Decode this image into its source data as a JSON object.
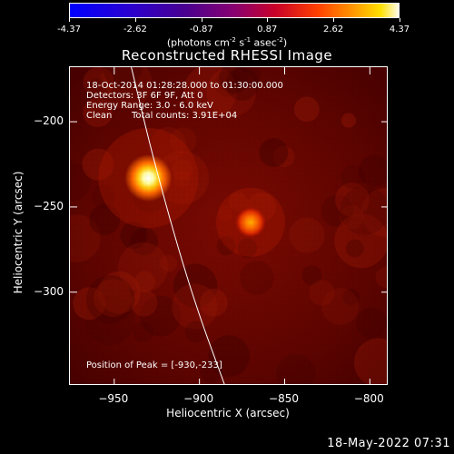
{
  "chart_data": {
    "type": "heatmap",
    "title": "Reconstructed RHESSI Image",
    "colorbar": {
      "tick_labels": [
        "-4.37",
        "-2.62",
        "-0.87",
        "0.87",
        "2.62",
        "4.37"
      ],
      "range": [
        -4.37,
        4.37
      ],
      "unit_parts": [
        "(photons cm",
        "-2",
        " s",
        "-1",
        " asec",
        "-2",
        ")"
      ]
    },
    "annotations": {
      "time_range": "18-Oct-2014 01:28:28.000 to 01:30:00.000",
      "detectors": "Detectors: 3F 6F 9F, Att 0",
      "energy_range": "Energy Range: 3.0 - 6.0 keV",
      "clean_label": "Clean",
      "total_counts": "Total counts: 3.91E+04",
      "peak_position": "Position of Peak = [-930,-233]"
    },
    "xlabel": "Heliocentric X (arcsec)",
    "ylabel": "Heliocentric Y (arcsec)",
    "xlim": [
      -976,
      -789
    ],
    "ylim": [
      -355,
      -168
    ],
    "x_ticks": [
      -950,
      -900,
      -850,
      -800
    ],
    "x_tick_labels": [
      "−950",
      "−900",
      "−850",
      "−800"
    ],
    "y_ticks": [
      -200,
      -250,
      -300
    ],
    "y_tick_labels": [
      "−200",
      "−250",
      "−300"
    ],
    "sources": [
      {
        "x": -930,
        "y": -233,
        "peak": 4.37
      },
      {
        "x": -870,
        "y": -259,
        "peak": 2.6
      }
    ],
    "limb_points": [
      [
        -940,
        -168
      ],
      [
        -925,
        -230
      ],
      [
        -905,
        -300
      ],
      [
        -885,
        -355
      ]
    ]
  },
  "footer": {
    "timestamp": "18-May-2022 07:31"
  }
}
